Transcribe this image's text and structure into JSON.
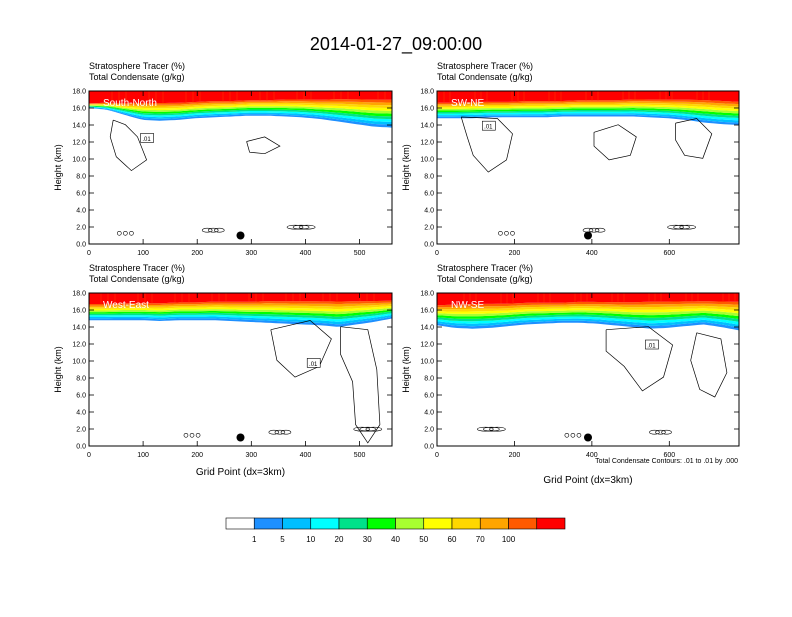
{
  "title": "2014-01-27_09:00:00",
  "panel_header": {
    "line1": "Stratosphere Tracer   (%)",
    "line2": "Total Condensate   (g/kg)"
  },
  "footnote": "Total Condensate Contours: .01 to .01 by .000",
  "colors": {
    "levels": [
      "#ffffff",
      "#1e90ff",
      "#00bfff",
      "#00ffff",
      "#00e28a",
      "#00ff00",
      "#a8ff30",
      "#ffff00",
      "#ffd700",
      "#ffa500",
      "#ff5a00",
      "#ff0000"
    ],
    "contour": "#000000",
    "marker": "#000000"
  },
  "chart_data": [
    {
      "type": "heatmap",
      "panel_label": "South-North",
      "x_ticks": [
        "0",
        "100",
        "200",
        "300",
        "400",
        "500"
      ],
      "x_range": [
        0,
        560
      ],
      "y_ticks": [
        "0.0",
        "2.0",
        "4.0",
        "6.0",
        "8.0",
        "10.0",
        "12.0",
        "14.0",
        "16.0",
        "18.0"
      ],
      "y_range": [
        0,
        18
      ],
      "ylabel": "Height (km)",
      "xlabel": "",
      "contour_label": ".01",
      "marker_x": 280,
      "tracer_base_km": [
        16.0,
        15.8,
        15.2,
        14.6,
        14.5,
        14.6,
        14.8,
        14.9,
        15.0,
        15.1,
        15.1,
        15.0,
        14.9,
        14.7,
        14.4,
        14.1,
        13.8,
        13.7
      ],
      "tracer_top_km": [
        16.6,
        16.7,
        16.7,
        16.8,
        16.8,
        16.8,
        16.9,
        17.0,
        17.0,
        17.1,
        17.1,
        17.2,
        17.2,
        17.2,
        17.3,
        17.3,
        17.3,
        17.3
      ]
    },
    {
      "type": "heatmap",
      "panel_label": "SW-NE",
      "x_ticks": [
        "0",
        "200",
        "400",
        "600"
      ],
      "x_range": [
        0,
        780
      ],
      "y_ticks": [
        "0.0",
        "2.0",
        "4.0",
        "6.0",
        "8.0",
        "10.0",
        "12.0",
        "14.0",
        "16.0",
        "18.0"
      ],
      "y_range": [
        0,
        18
      ],
      "ylabel": "Height (km)",
      "xlabel": "",
      "contour_label": ".01",
      "marker_x": 390,
      "tracer_base_km": [
        14.8,
        14.8,
        14.8,
        14.9,
        14.9,
        14.9,
        14.9,
        15.0,
        15.0,
        15.0,
        15.0,
        15.0,
        14.9,
        14.8,
        14.6,
        14.3,
        14.1,
        14.0
      ],
      "tracer_top_km": [
        16.8,
        16.8,
        16.9,
        16.9,
        16.9,
        17.0,
        17.0,
        17.0,
        17.1,
        17.1,
        17.1,
        17.2,
        17.2,
        17.2,
        17.2,
        17.2,
        17.1,
        17.0
      ]
    },
    {
      "type": "heatmap",
      "panel_label": "West-East",
      "x_ticks": [
        "0",
        "100",
        "200",
        "300",
        "400",
        "500"
      ],
      "x_range": [
        0,
        560
      ],
      "y_ticks": [
        "0.0",
        "2.0",
        "4.0",
        "6.0",
        "8.0",
        "10.0",
        "12.0",
        "14.0",
        "16.0",
        "18.0"
      ],
      "y_range": [
        0,
        18
      ],
      "ylabel": "Height (km)",
      "xlabel": "Grid Point (dx=3km)",
      "contour_label": ".01",
      "marker_x": 280,
      "tracer_base_km": [
        14.8,
        14.8,
        14.8,
        14.8,
        14.7,
        14.8,
        14.8,
        14.8,
        14.7,
        14.6,
        14.5,
        14.4,
        14.3,
        14.2,
        14.0,
        14.3,
        14.6,
        15.0
      ],
      "tracer_top_km": [
        16.9,
        16.9,
        17.0,
        17.0,
        17.0,
        17.1,
        17.1,
        17.2,
        17.2,
        17.2,
        17.3,
        17.3,
        17.3,
        17.3,
        17.3,
        17.3,
        17.3,
        17.3
      ]
    },
    {
      "type": "heatmap",
      "panel_label": "NW-SE",
      "x_ticks": [
        "0",
        "200",
        "400",
        "600"
      ],
      "x_range": [
        0,
        780
      ],
      "y_ticks": [
        "0.0",
        "2.0",
        "4.0",
        "6.0",
        "8.0",
        "10.0",
        "12.0",
        "14.0",
        "16.0",
        "18.0"
      ],
      "y_range": [
        0,
        18
      ],
      "ylabel": "Height (km)",
      "xlabel": "Grid Point (dx=3km)",
      "contour_label": ".01",
      "marker_x": 390,
      "tracer_base_km": [
        14.2,
        13.9,
        13.8,
        13.9,
        14.1,
        14.3,
        14.4,
        14.5,
        14.5,
        14.4,
        14.2,
        14.0,
        13.8,
        13.9,
        14.1,
        14.3,
        14.0,
        13.6
      ],
      "tracer_top_km": [
        16.8,
        16.9,
        17.0,
        17.0,
        17.0,
        17.1,
        17.1,
        17.1,
        17.2,
        17.2,
        17.2,
        17.2,
        17.3,
        17.3,
        17.3,
        17.3,
        17.3,
        17.3
      ]
    },
    {
      "type": "colorbar",
      "labels": [
        "1",
        "5",
        "10",
        "20",
        "30",
        "40",
        "50",
        "60",
        "70",
        "100"
      ],
      "colors": [
        "#ffffff",
        "#1e90ff",
        "#00bfff",
        "#00ffff",
        "#00e28a",
        "#00ff00",
        "#a8ff30",
        "#ffff00",
        "#ffd700",
        "#ffa500",
        "#ff5a00",
        "#ff0000"
      ]
    }
  ]
}
